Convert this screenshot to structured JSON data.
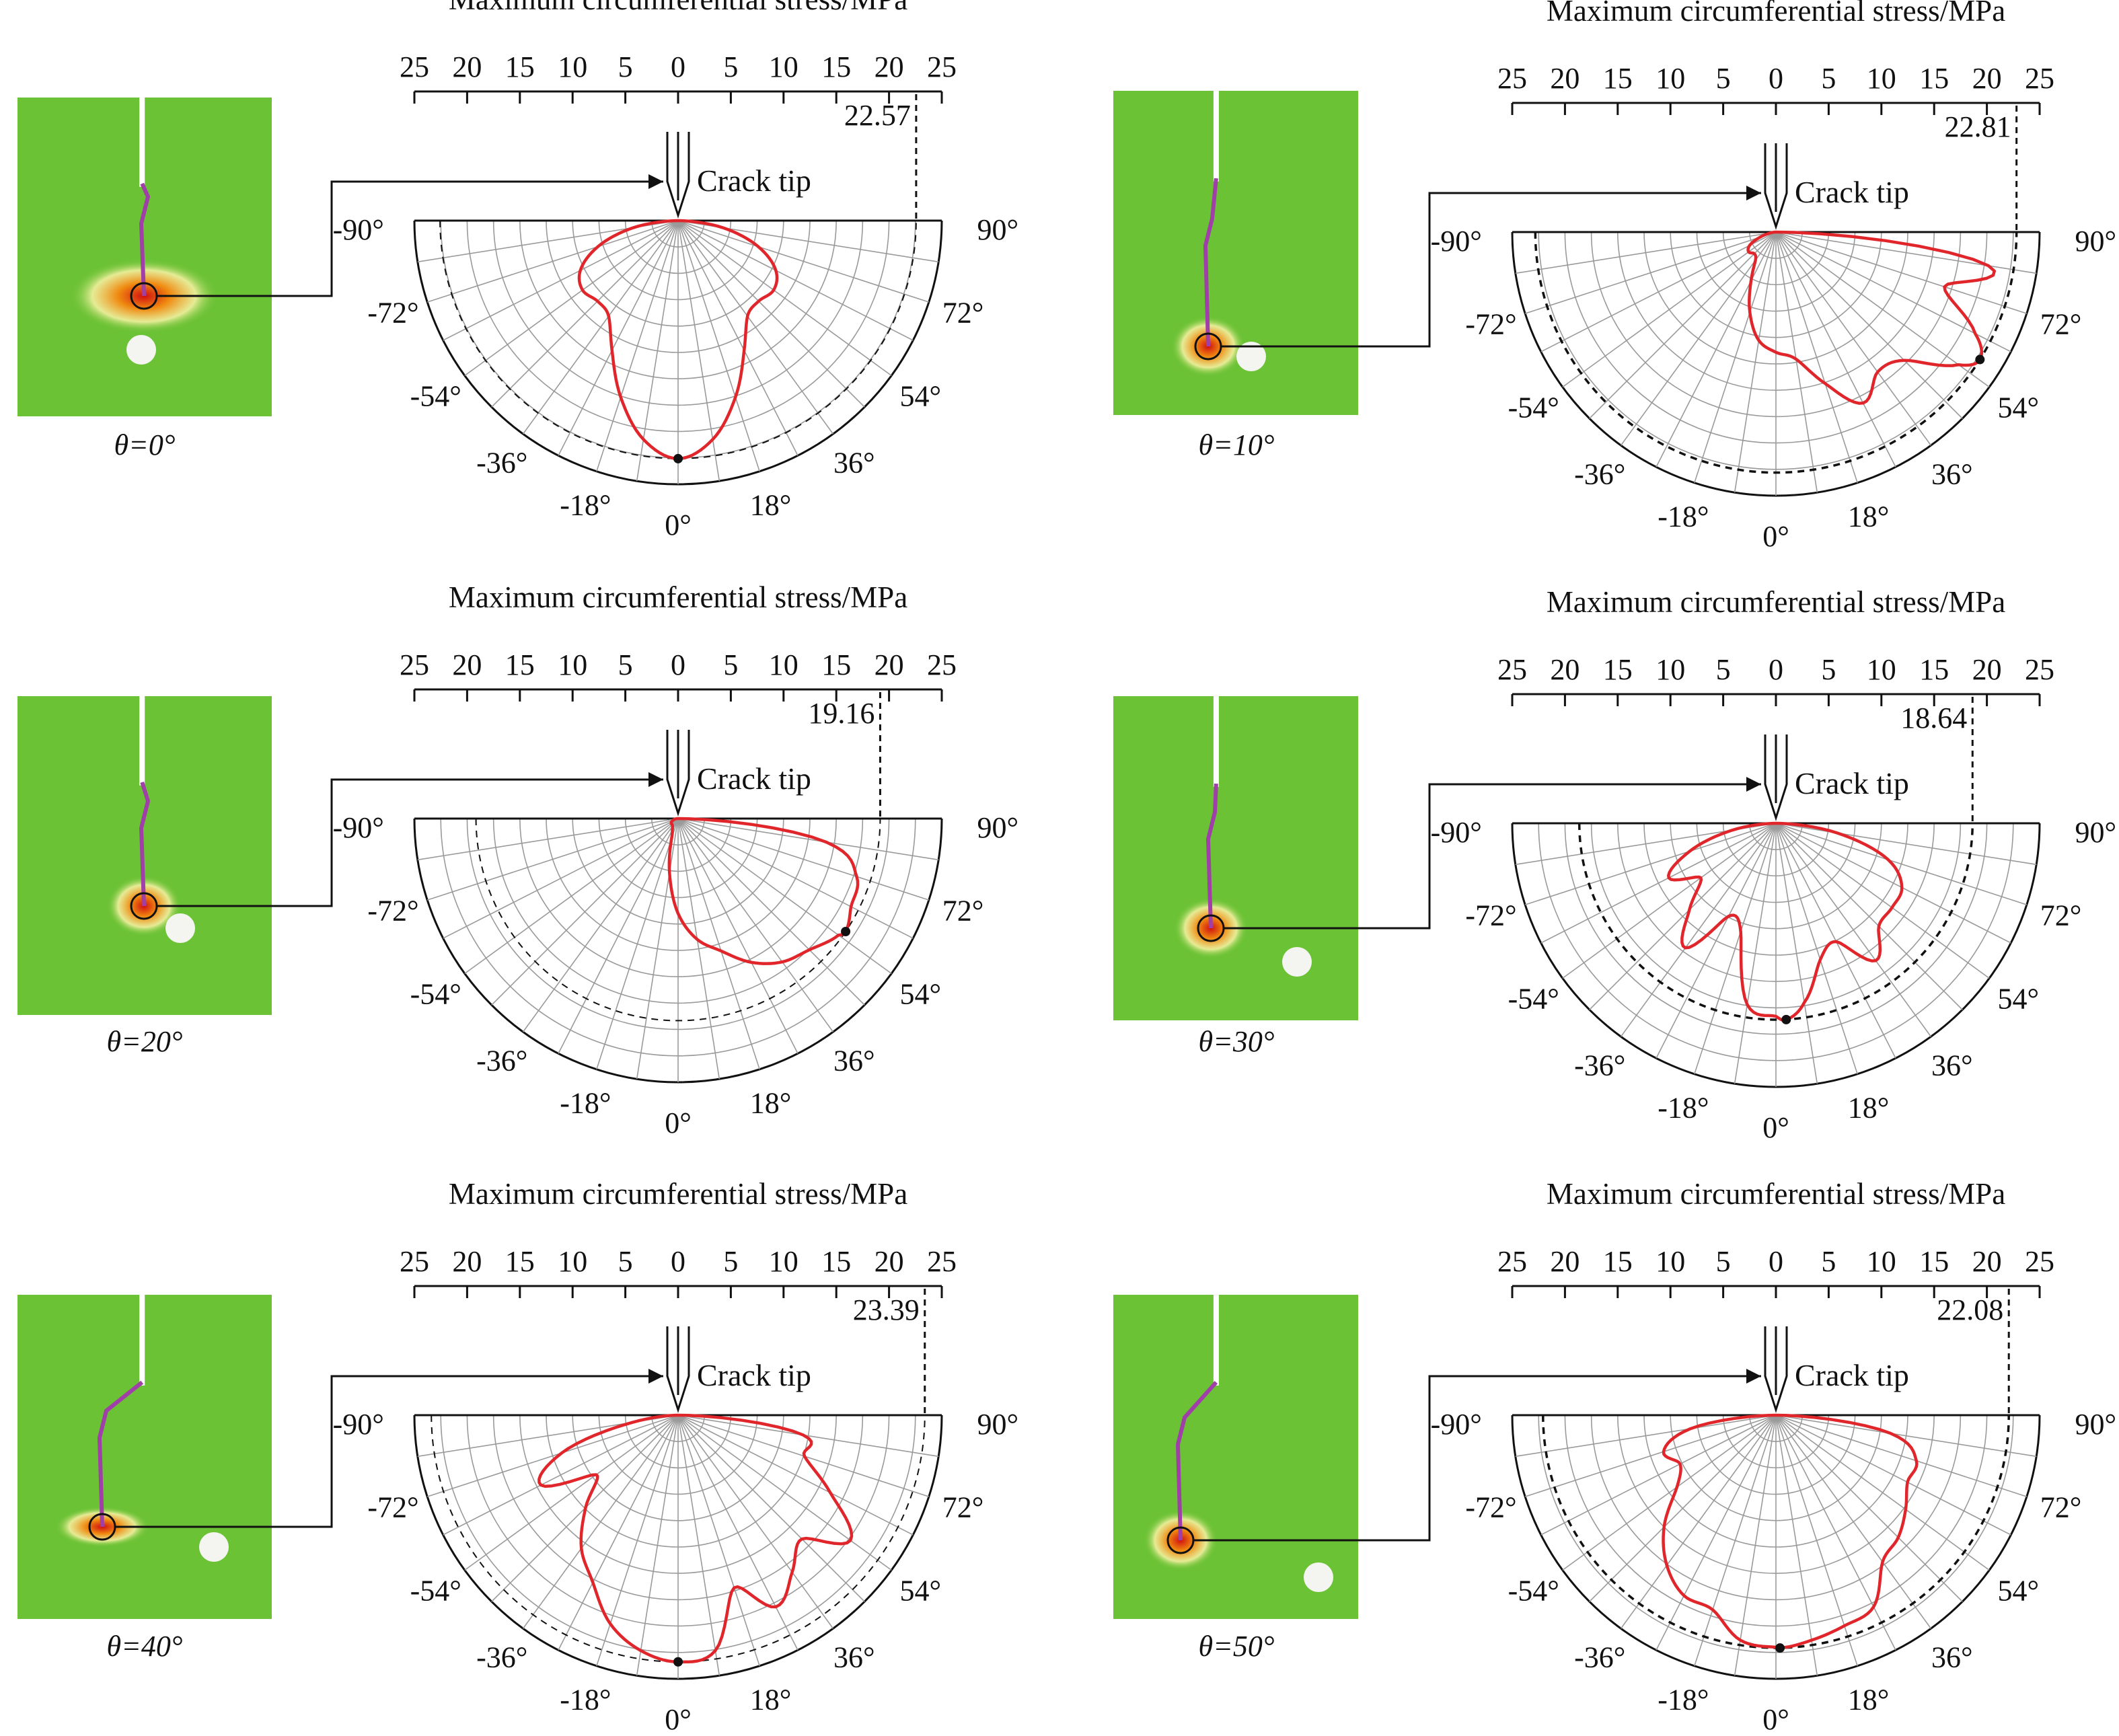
{
  "common": {
    "axis_title": "Maximum circumferential stress/MPa",
    "axis_tick_labels": [
      "25",
      "20",
      "15",
      "10",
      "5",
      "0",
      "5",
      "10",
      "15",
      "20",
      "25"
    ],
    "crack_tip_label": "Crack tip",
    "angle_labels": [
      "-90°",
      "-72°",
      "-54°",
      "-36°",
      "-18°",
      "0°",
      "18°",
      "36°",
      "54°",
      "72°",
      "90°"
    ]
  },
  "colors": {
    "stress_curve": "#e0262b",
    "field_background": "#6cc235",
    "crack_path": "#a03fa8",
    "grid": "#9a9a9a"
  },
  "chart_data": [
    {
      "type": "polar-line",
      "theta_label": "θ=0°",
      "max_stress_label": "22.57",
      "max_stress": 22.57,
      "max_direction_deg": 0,
      "r_range": [
        0,
        25
      ],
      "angle_range_deg": [
        -90,
        90
      ],
      "grid": true,
      "angles_deg": [
        -90,
        -81,
        -72,
        -63,
        -54,
        -45,
        -36,
        -27,
        -18,
        -9,
        0,
        9,
        18,
        27,
        36,
        45,
        54,
        63,
        72,
        81,
        90
      ],
      "stress_mpa": [
        0,
        4.3,
        8.0,
        10.4,
        11.2,
        10.8,
        11.2,
        13.8,
        17.6,
        21.0,
        22.57,
        21.0,
        17.6,
        13.8,
        11.2,
        10.8,
        11.2,
        10.4,
        8.0,
        4.3,
        0
      ]
    },
    {
      "type": "polar-line",
      "theta_label": "θ=10°",
      "max_stress_label": "22.81",
      "max_stress": 22.81,
      "max_direction_deg": 58,
      "r_range": [
        0,
        25
      ],
      "angle_range_deg": [
        -90,
        90
      ],
      "grid": true,
      "angles_deg": [
        -90,
        -81,
        -72,
        -63,
        -54,
        -45,
        -36,
        -27,
        -18,
        -9,
        0,
        9,
        18,
        27,
        36,
        45,
        54,
        58,
        63,
        72,
        81,
        90
      ],
      "stress_mpa": [
        0,
        0.5,
        1.6,
        2.8,
        3.2,
        2.9,
        3.3,
        5.2,
        8.0,
        10.4,
        11.4,
        12.2,
        15.1,
        18.2,
        16.4,
        17.2,
        21.4,
        22.81,
        21.2,
        16.8,
        20.4,
        0
      ]
    },
    {
      "type": "polar-line",
      "theta_label": "θ=20°",
      "max_stress_label": "19.16",
      "max_stress": 19.16,
      "max_direction_deg": 56,
      "r_range": [
        0,
        25
      ],
      "angle_range_deg": [
        -90,
        90
      ],
      "grid": true,
      "angles_deg": [
        -90,
        -81,
        -72,
        -63,
        -54,
        -45,
        -36,
        -27,
        -18,
        -9,
        0,
        9,
        18,
        27,
        36,
        45,
        54,
        56,
        63,
        72,
        81,
        90
      ],
      "stress_mpa": [
        0,
        0.3,
        0.5,
        0.7,
        0.8,
        0.8,
        0.9,
        1.2,
        2.0,
        5.2,
        9.0,
        11.6,
        13.2,
        15.3,
        16.8,
        17.6,
        18.8,
        19.16,
        18.4,
        17.8,
        14.2,
        0
      ]
    },
    {
      "type": "polar-line",
      "theta_label": "θ=30°",
      "max_stress_label": "18.64",
      "max_stress": 18.64,
      "max_direction_deg": 3,
      "r_range": [
        0,
        25
      ],
      "angle_range_deg": [
        -90,
        90
      ],
      "grid": true,
      "angles_deg": [
        -90,
        -81,
        -72,
        -63,
        -54,
        -45,
        -36,
        -27,
        -18,
        -9,
        0,
        3,
        9,
        18,
        27,
        36,
        45,
        54,
        63,
        72,
        81,
        90
      ],
      "stress_mpa": [
        0,
        4.2,
        8.6,
        11.4,
        8.8,
        11.6,
        14.6,
        9.9,
        10.8,
        17.4,
        18.3,
        18.64,
        17.2,
        13.6,
        12.6,
        16.1,
        13.8,
        13.6,
        13.4,
        11.2,
        5.9,
        0
      ]
    },
    {
      "type": "polar-line",
      "theta_label": "θ=40°",
      "max_stress_label": "23.39",
      "max_stress": 23.39,
      "max_direction_deg": 0,
      "r_range": [
        0,
        25
      ],
      "angle_range_deg": [
        -90,
        90
      ],
      "grid": true,
      "angles_deg": [
        -90,
        -81,
        -72,
        -63,
        -54,
        -45,
        -36,
        -27,
        -18,
        -9,
        0,
        9,
        18,
        27,
        36,
        45,
        54,
        63,
        72,
        81,
        90
      ],
      "stress_mpa": [
        0,
        4.4,
        11.6,
        14.6,
        9.6,
        12.4,
        15.6,
        17.8,
        20.8,
        22.6,
        23.39,
        22.6,
        17.2,
        20.4,
        18.4,
        16.6,
        20.2,
        16.2,
        12.6,
        12.0,
        0
      ]
    },
    {
      "type": "polar-line",
      "theta_label": "θ=50°",
      "max_stress_label": "22.08",
      "max_stress": 22.08,
      "max_direction_deg": 1,
      "r_range": [
        0,
        25
      ],
      "angle_range_deg": [
        -90,
        90
      ],
      "grid": true,
      "angles_deg": [
        -90,
        -81,
        -72,
        -63,
        -54,
        -45,
        -36,
        -27,
        -18,
        -9,
        0,
        1,
        9,
        18,
        27,
        36,
        45,
        54,
        63,
        72,
        81,
        90
      ],
      "stress_mpa": [
        0,
        8.2,
        11.2,
        10.2,
        11.6,
        15.0,
        17.6,
        19.2,
        19.4,
        21.6,
        22.0,
        22.08,
        21.6,
        21.0,
        20.4,
        17.2,
        16.4,
        15.2,
        14.0,
        14.0,
        11.0,
        0
      ]
    }
  ]
}
